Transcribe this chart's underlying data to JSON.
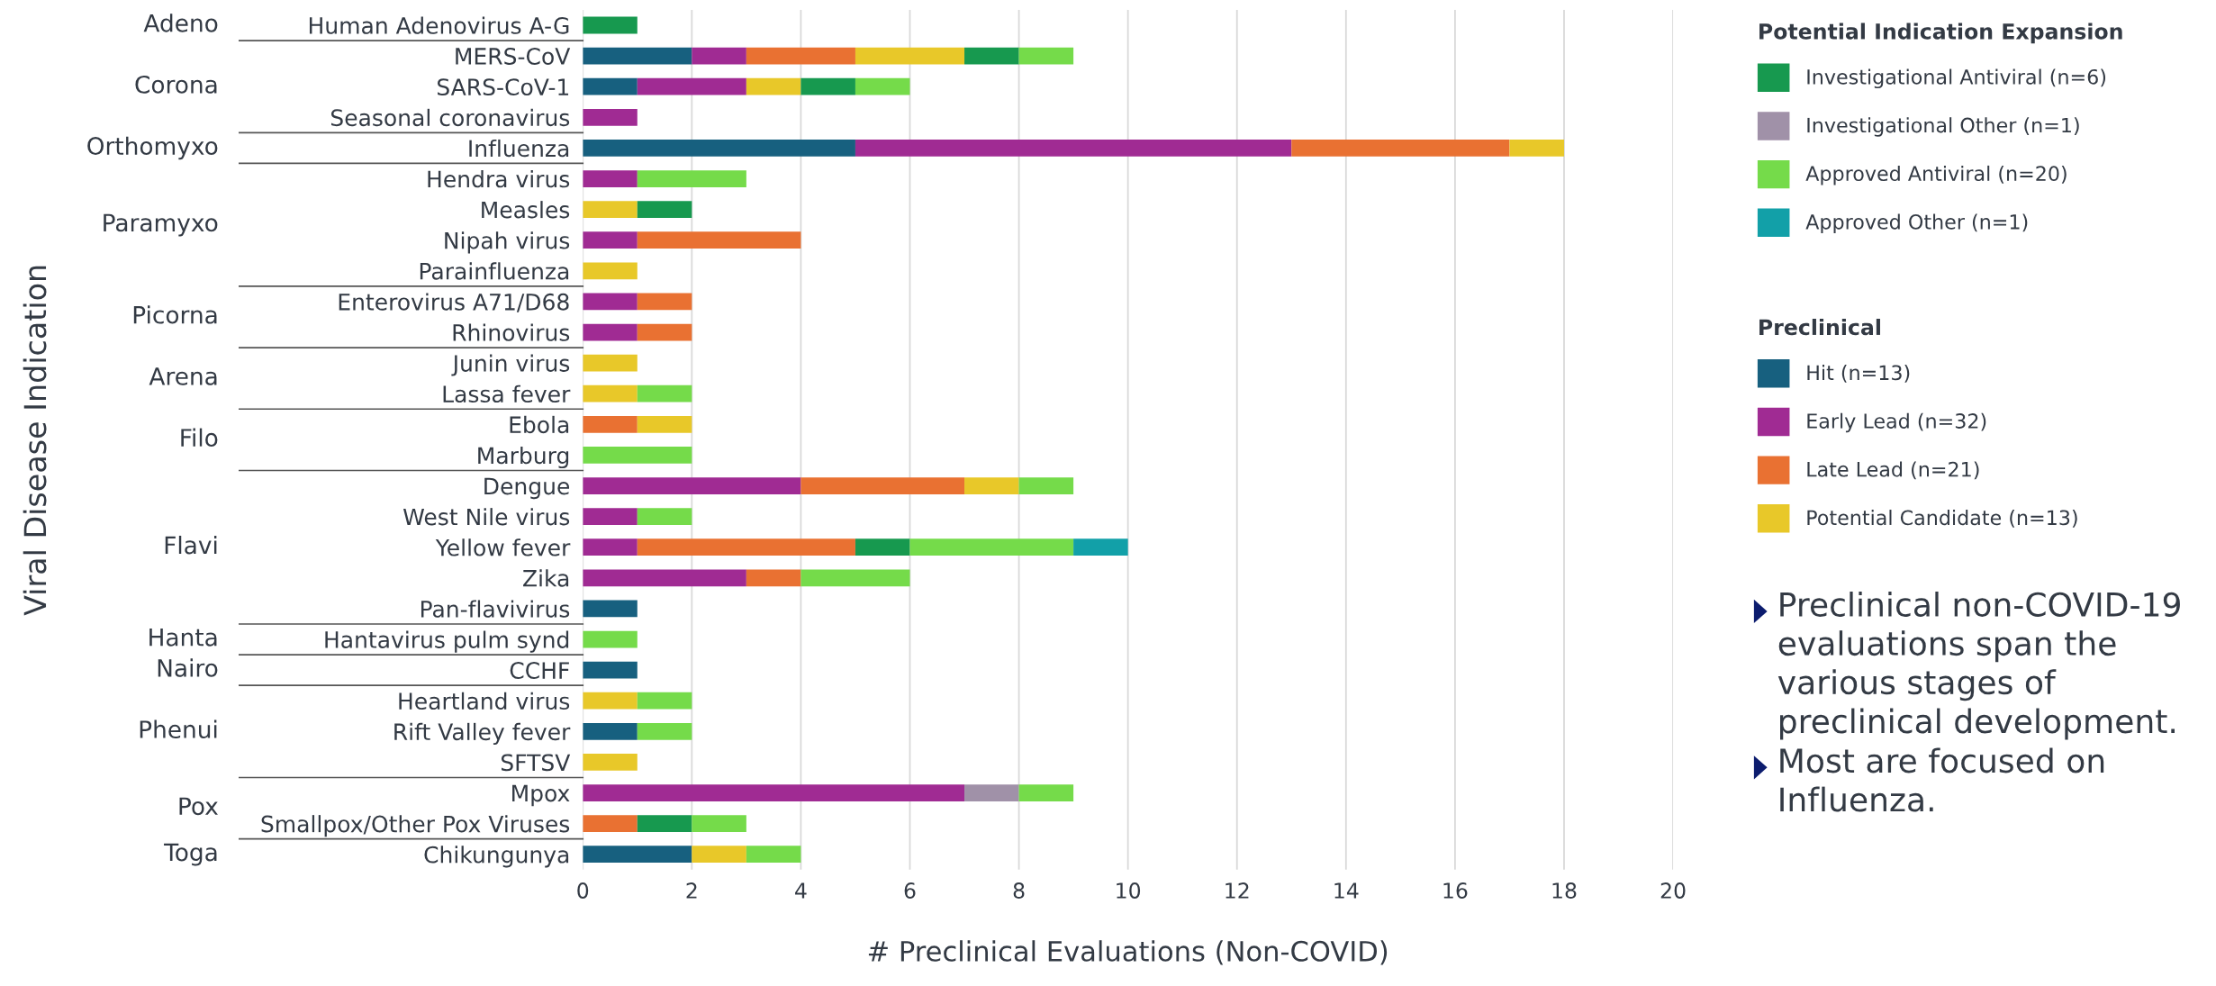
{
  "chart_data": {
    "type": "bar",
    "orientation": "horizontal",
    "stacked": true,
    "xlabel": "# Preclinical Evaluations (Non-COVID)",
    "categories": [
      "Human Adenovirus A-G",
      "MERS-CoV",
      "SARS-CoV-1",
      "Seasonal coronavirus",
      "Influenza",
      "Hendra virus",
      "Measles",
      "Nipah virus",
      "Parainfluenza",
      "Enterovirus A71/D68",
      "Rhinovirus",
      "Junin virus",
      "Lassa fever",
      "Ebola",
      "Marburg",
      "Dengue",
      "West Nile virus",
      "Yellow fever",
      "Zika",
      "Pan-flavivirus",
      "Hantavirus pulm synd",
      "CCHF",
      "Heartland virus",
      "Rift Valley fever",
      "SFTSV",
      "Mpox",
      "Smallpox/Other Pox Viruses",
      "Chikungunya"
    ],
    "series": [
      {
        "name": "Hit (n=13)",
        "color": "#17607f",
        "values": [
          0,
          2,
          1,
          0,
          5,
          0,
          0,
          0,
          0,
          0,
          0,
          0,
          0,
          0,
          0,
          0,
          0,
          0,
          0,
          1,
          0,
          1,
          0,
          1,
          0,
          0,
          0,
          2
        ]
      },
      {
        "name": "Early Lead (n=32)",
        "color": "#a02b93",
        "values": [
          0,
          1,
          2,
          1,
          8,
          1,
          0,
          1,
          0,
          1,
          1,
          0,
          0,
          0,
          0,
          4,
          1,
          1,
          3,
          0,
          0,
          0,
          0,
          0,
          0,
          7,
          0,
          0
        ]
      },
      {
        "name": "Late Lead (n=21)",
        "color": "#e97132",
        "values": [
          0,
          2,
          0,
          0,
          4,
          0,
          0,
          3,
          0,
          1,
          1,
          0,
          0,
          1,
          0,
          3,
          0,
          4,
          1,
          0,
          0,
          0,
          0,
          0,
          0,
          0,
          1,
          0
        ]
      },
      {
        "name": "Potential Candidate (n=13)",
        "color": "#e8c829",
        "values": [
          0,
          2,
          1,
          0,
          1,
          0,
          1,
          0,
          1,
          0,
          0,
          1,
          1,
          1,
          0,
          1,
          0,
          0,
          0,
          0,
          0,
          0,
          1,
          0,
          1,
          0,
          0,
          1
        ]
      },
      {
        "name": "Investigational Antiviral (n=6)",
        "color": "#17994f",
        "values": [
          1,
          1,
          1,
          0,
          0,
          0,
          1,
          0,
          0,
          0,
          0,
          0,
          0,
          0,
          0,
          0,
          0,
          1,
          0,
          0,
          0,
          0,
          0,
          0,
          0,
          0,
          1,
          0
        ]
      },
      {
        "name": "Investigational Other (n=1)",
        "color": "#a091a8",
        "values": [
          0,
          0,
          0,
          0,
          0,
          0,
          0,
          0,
          0,
          0,
          0,
          0,
          0,
          0,
          0,
          0,
          0,
          0,
          0,
          0,
          0,
          0,
          0,
          0,
          0,
          1,
          0,
          0
        ]
      },
      {
        "name": "Approved Antiviral (n=20)",
        "color": "#75db4a",
        "values": [
          0,
          1,
          1,
          0,
          0,
          2,
          0,
          0,
          0,
          0,
          0,
          0,
          1,
          0,
          2,
          1,
          1,
          3,
          2,
          0,
          1,
          0,
          1,
          1,
          0,
          1,
          1,
          1
        ]
      },
      {
        "name": "Approved Other (n=1)",
        "color": "#12a0a8",
        "values": [
          0,
          0,
          0,
          0,
          0,
          0,
          0,
          0,
          0,
          0,
          0,
          0,
          0,
          0,
          0,
          0,
          0,
          1,
          0,
          0,
          0,
          0,
          0,
          0,
          0,
          0,
          0,
          0
        ]
      }
    ],
    "legend_title": [
      "Preclinical",
      "Potential Indication Expansion"
    ],
    "legend": "right",
    "xlim": [
      0,
      20
    ],
    "xticks": [
      0,
      2,
      4,
      6,
      8,
      10,
      12,
      14,
      16,
      18,
      20
    ],
    "grid": "x",
    "annotations": [
      "Viral Disease Indication",
      "Adeno",
      "Corona",
      "Orthomyxo",
      "Paramyxo",
      "Picorna",
      "Arena",
      "Filo",
      "Flavi",
      "Hanta",
      "Nairo",
      "Phenui",
      "Pox",
      "Toga",
      "Preclinical non-COVID-19 evaluations span the various stages of preclinical development.",
      "Most are focused on Influenza."
    ]
  }
}
